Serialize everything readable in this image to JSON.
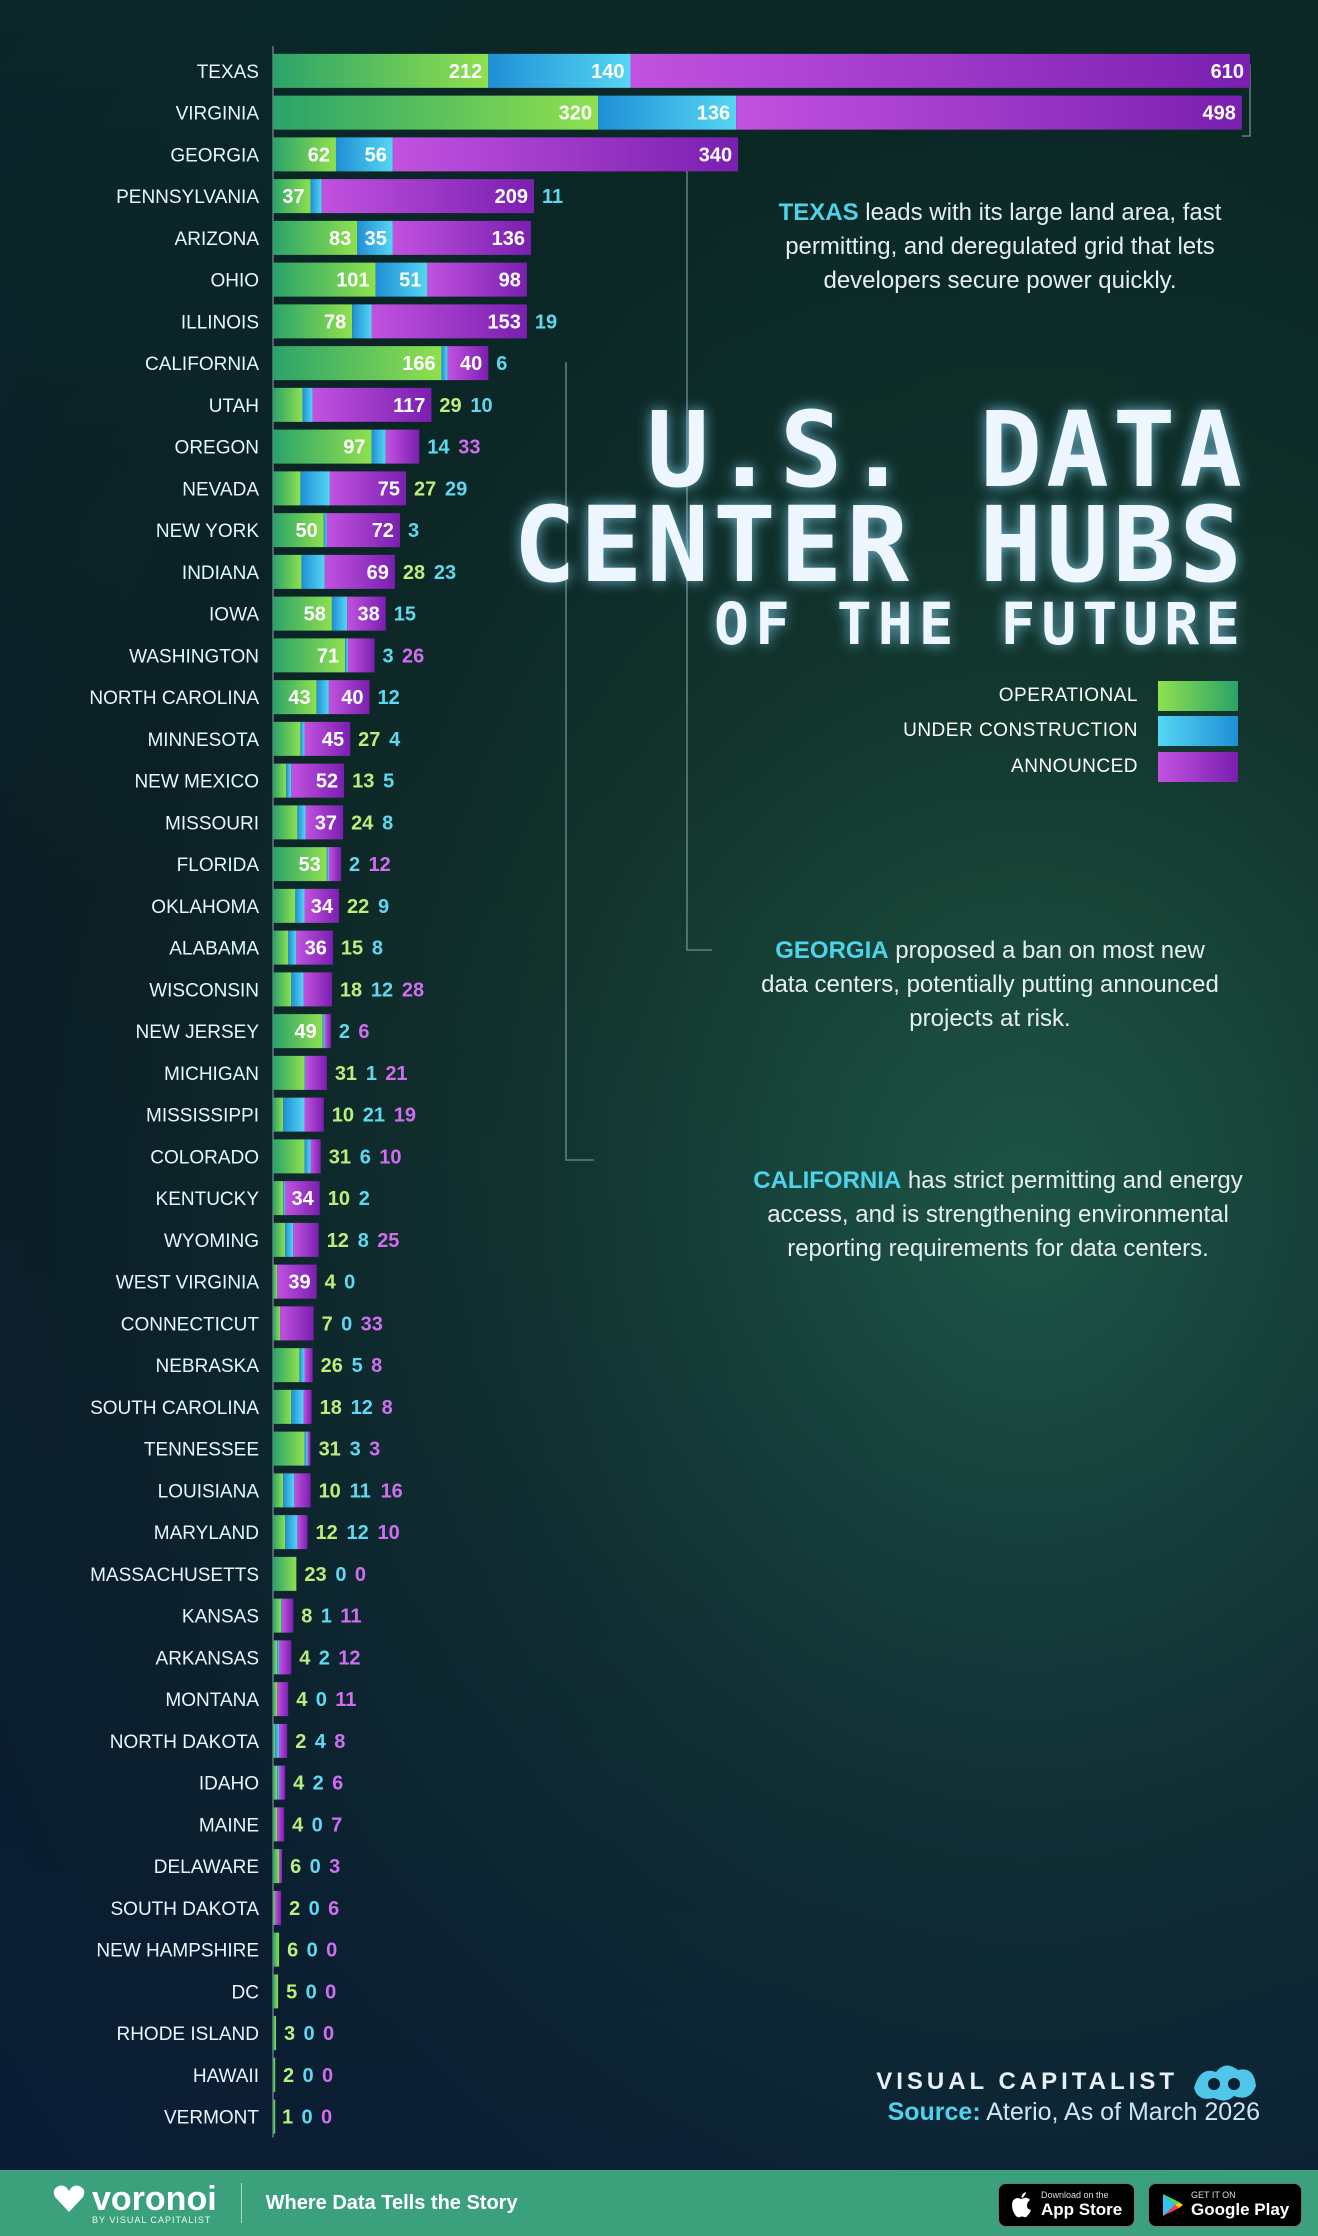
{
  "title": {
    "line1": "U.S. DATA",
    "line2": "CENTER HUBS",
    "line3": "OF THE FUTURE"
  },
  "legend": [
    {
      "label": "OPERATIONAL",
      "color": "#6cd35a"
    },
    {
      "label": "UNDER CONSTRUCTION",
      "color": "#3ec2ea"
    },
    {
      "label": "ANNOUNCED",
      "color": "#a43fd6"
    }
  ],
  "notes": [
    {
      "bold": "TEXAS",
      "text": " leads with its large land area, fast permitting, and deregulated grid that lets developers secure power quickly."
    },
    {
      "bold": "GEORGIA",
      "text": " proposed a ban on most new data centers, potentially putting announced projects at risk."
    },
    {
      "bold": "CALIFORNIA",
      "text": " has strict permitting and energy access, and is strengthening environmental reporting requirements for data centers."
    }
  ],
  "brand": "VISUAL CAPITALIST",
  "source": {
    "label": "Source:",
    "text": " Aterio, As of March 2026"
  },
  "footer": {
    "logo": "voronoi",
    "logo_sub": "BY VISUAL CAPITALIST",
    "tagline": "Where Data Tells the Story",
    "appstore_small": "Download on the",
    "appstore_big": "App Store",
    "googleplay_small": "GET IT ON",
    "googleplay_big": "Google Play"
  },
  "chart_data": {
    "type": "bar",
    "orientation": "horizontal",
    "stacked": true,
    "categories": [
      "TEXAS",
      "VIRGINIA",
      "GEORGIA",
      "PENNSYLVANIA",
      "ARIZONA",
      "OHIO",
      "ILLINOIS",
      "CALIFORNIA",
      "UTAH",
      "OREGON",
      "NEVADA",
      "NEW YORK",
      "INDIANA",
      "IOWA",
      "WASHINGTON",
      "NORTH CAROLINA",
      "MINNESOTA",
      "NEW MEXICO",
      "MISSOURI",
      "FLORIDA",
      "OKLAHOMA",
      "ALABAMA",
      "WISCONSIN",
      "NEW JERSEY",
      "MICHIGAN",
      "MISSISSIPPI",
      "COLORADO",
      "KENTUCKY",
      "WYOMING",
      "WEST VIRGINIA",
      "CONNECTICUT",
      "NEBRASKA",
      "SOUTH CAROLINA",
      "TENNESSEE",
      "LOUISIANA",
      "MARYLAND",
      "MASSACHUSETTS",
      "KANSAS",
      "ARKANSAS",
      "MONTANA",
      "NORTH DAKOTA",
      "IDAHO",
      "MAINE",
      "DELAWARE",
      "SOUTH DAKOTA",
      "NEW HAMPSHIRE",
      "DC",
      "RHODE ISLAND",
      "HAWAII",
      "VERMONT"
    ],
    "series": [
      {
        "name": "OPERATIONAL",
        "values": [
          212,
          320,
          62,
          37,
          83,
          101,
          78,
          166,
          29,
          97,
          27,
          50,
          28,
          58,
          71,
          43,
          27,
          13,
          24,
          53,
          22,
          15,
          18,
          49,
          31,
          10,
          31,
          10,
          12,
          4,
          7,
          26,
          18,
          31,
          10,
          12,
          23,
          8,
          4,
          4,
          2,
          4,
          4,
          6,
          2,
          6,
          5,
          3,
          2,
          1
        ]
      },
      {
        "name": "UNDER CONSTRUCTION",
        "values": [
          140,
          136,
          56,
          11,
          35,
          51,
          19,
          6,
          10,
          14,
          29,
          3,
          23,
          15,
          3,
          12,
          4,
          5,
          8,
          2,
          9,
          8,
          12,
          2,
          1,
          21,
          6,
          2,
          8,
          0,
          0,
          5,
          12,
          3,
          11,
          12,
          0,
          1,
          2,
          0,
          4,
          2,
          0,
          0,
          0,
          0,
          0,
          0,
          0,
          0
        ]
      },
      {
        "name": "ANNOUNCED",
        "values": [
          610,
          498,
          340,
          209,
          136,
          98,
          153,
          40,
          117,
          33,
          75,
          72,
          69,
          38,
          26,
          40,
          45,
          52,
          37,
          12,
          34,
          36,
          28,
          6,
          21,
          19,
          10,
          34,
          25,
          39,
          33,
          8,
          8,
          3,
          16,
          10,
          0,
          11,
          12,
          11,
          8,
          6,
          7,
          3,
          6,
          0,
          0,
          0,
          0,
          0
        ]
      }
    ],
    "xlim": [
      0,
      962
    ],
    "colors": {
      "operational": "#6cd35a",
      "construction": "#3ec2ea",
      "announced": "#a43fd6"
    }
  }
}
